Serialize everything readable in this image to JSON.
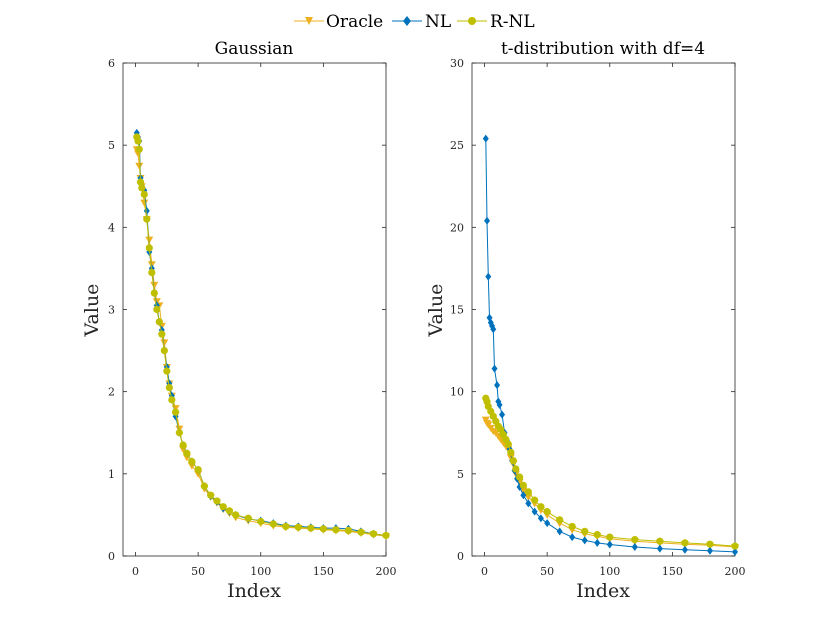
{
  "chart_data": [
    {
      "type": "line",
      "title": "Gaussian",
      "xlabel": "Index",
      "ylabel": "Value",
      "xlim": [
        -10,
        200
      ],
      "ylim": [
        0,
        6
      ],
      "xticks": [
        "0",
        "50",
        "100",
        "150",
        "200"
      ],
      "yticks": [
        "0",
        "1",
        "2",
        "3",
        "4",
        "5",
        "6"
      ],
      "series": [
        {
          "name": "Oracle",
          "x": [
            1,
            2,
            3,
            4,
            5,
            7,
            9,
            11,
            13,
            15,
            17,
            19,
            21,
            23,
            25,
            27,
            29,
            32,
            35,
            38,
            41,
            45,
            50,
            55,
            60,
            65,
            70,
            75,
            80,
            90,
            100,
            110,
            120,
            130,
            140,
            150,
            160,
            170,
            180,
            190,
            200
          ],
          "y": [
            4.95,
            4.9,
            4.75,
            4.6,
            4.5,
            4.3,
            4.1,
            3.85,
            3.55,
            3.3,
            3.1,
            3.05,
            2.8,
            2.6,
            2.3,
            2.1,
            1.95,
            1.8,
            1.55,
            1.3,
            1.2,
            1.1,
            1.0,
            0.82,
            0.72,
            0.65,
            0.57,
            0.52,
            0.47,
            0.43,
            0.4,
            0.37,
            0.35,
            0.34,
            0.33,
            0.32,
            0.31,
            0.3,
            0.28,
            0.26,
            0.24
          ]
        },
        {
          "name": "NL",
          "x": [
            1,
            2,
            3,
            4,
            5,
            7,
            9,
            11,
            13,
            15,
            17,
            19,
            21,
            23,
            25,
            27,
            29,
            32,
            35,
            38,
            41,
            45,
            50,
            55,
            60,
            65,
            70,
            75,
            80,
            90,
            100,
            110,
            120,
            130,
            140,
            150,
            160,
            170,
            180,
            190,
            200
          ],
          "y": [
            5.15,
            5.1,
            5.05,
            4.6,
            4.5,
            4.45,
            4.2,
            3.7,
            3.5,
            3.2,
            3.05,
            2.85,
            2.75,
            2.5,
            2.3,
            2.1,
            1.95,
            1.7,
            1.5,
            1.35,
            1.25,
            1.15,
            1.05,
            0.85,
            0.73,
            0.66,
            0.58,
            0.54,
            0.5,
            0.45,
            0.43,
            0.4,
            0.37,
            0.36,
            0.35,
            0.34,
            0.34,
            0.33,
            0.3,
            0.27,
            0.25
          ]
        },
        {
          "name": "R-NL",
          "x": [
            1,
            2,
            3,
            4,
            5,
            7,
            9,
            11,
            13,
            15,
            17,
            19,
            21,
            23,
            25,
            27,
            29,
            32,
            35,
            38,
            41,
            45,
            50,
            55,
            60,
            65,
            70,
            75,
            80,
            90,
            100,
            110,
            120,
            130,
            140,
            150,
            160,
            170,
            180,
            190,
            200
          ],
          "y": [
            5.1,
            5.05,
            4.95,
            4.55,
            4.48,
            4.4,
            4.1,
            3.75,
            3.45,
            3.2,
            3.0,
            2.85,
            2.7,
            2.5,
            2.25,
            2.05,
            1.9,
            1.75,
            1.5,
            1.35,
            1.25,
            1.15,
            1.05,
            0.85,
            0.74,
            0.67,
            0.6,
            0.55,
            0.5,
            0.46,
            0.42,
            0.39,
            0.36,
            0.35,
            0.34,
            0.33,
            0.32,
            0.31,
            0.29,
            0.27,
            0.25
          ]
        }
      ]
    },
    {
      "type": "line",
      "title": "t-distribution with df=4",
      "xlabel": "Index",
      "ylabel": "Value",
      "xlim": [
        -10,
        200
      ],
      "ylim": [
        0,
        30
      ],
      "xticks": [
        "0",
        "50",
        "100",
        "150",
        "200"
      ],
      "yticks": [
        "0",
        "5",
        "10",
        "15",
        "20",
        "25",
        "30"
      ],
      "series": [
        {
          "name": "Oracle",
          "x": [
            1,
            2,
            3,
            5,
            7,
            9,
            11,
            13,
            15,
            17,
            19,
            21,
            23,
            25,
            28,
            31,
            35,
            40,
            45,
            50,
            60,
            70,
            80,
            90,
            100,
            120,
            140,
            160,
            180,
            200
          ],
          "y": [
            8.3,
            8.1,
            8.0,
            7.8,
            7.6,
            7.5,
            7.3,
            7.1,
            6.9,
            6.7,
            6.5,
            6.0,
            5.6,
            5.0,
            4.5,
            4.0,
            3.6,
            3.2,
            2.8,
            2.5,
            2.0,
            1.6,
            1.35,
            1.2,
            1.05,
            0.9,
            0.8,
            0.72,
            0.65,
            0.55
          ]
        },
        {
          "name": "NL",
          "x": [
            1,
            2,
            3,
            4,
            5,
            6,
            7,
            8,
            10,
            11,
            12,
            14,
            16,
            18,
            20,
            22,
            24,
            26,
            28,
            31,
            35,
            40,
            45,
            50,
            60,
            70,
            80,
            90,
            100,
            120,
            140,
            160,
            180,
            200
          ],
          "y": [
            25.4,
            20.4,
            17.0,
            14.5,
            14.2,
            14.0,
            13.8,
            11.4,
            10.4,
            9.4,
            9.2,
            8.6,
            7.5,
            7.0,
            6.5,
            5.8,
            5.2,
            4.7,
            4.2,
            3.7,
            3.2,
            2.7,
            2.3,
            2.0,
            1.5,
            1.15,
            0.95,
            0.8,
            0.7,
            0.55,
            0.45,
            0.38,
            0.32,
            0.25
          ]
        },
        {
          "name": "R-NL",
          "x": [
            1,
            2,
            3,
            5,
            7,
            9,
            11,
            13,
            15,
            17,
            19,
            21,
            23,
            25,
            28,
            31,
            35,
            40,
            45,
            50,
            60,
            70,
            80,
            90,
            100,
            120,
            140,
            160,
            180,
            200
          ],
          "y": [
            9.6,
            9.4,
            9.1,
            8.8,
            8.5,
            8.2,
            7.9,
            7.7,
            7.4,
            7.1,
            6.8,
            6.3,
            5.8,
            5.3,
            4.8,
            4.3,
            3.9,
            3.4,
            3.0,
            2.7,
            2.2,
            1.8,
            1.5,
            1.3,
            1.15,
            1.0,
            0.9,
            0.8,
            0.72,
            0.6
          ]
        }
      ]
    }
  ],
  "legend": {
    "position": "top-center",
    "entries": [
      {
        "label": "Oracle",
        "color": "#EDB120",
        "marker": "triangle-down"
      },
      {
        "label": "NL",
        "color": "#0072BD",
        "marker": "diamond"
      },
      {
        "label": "R-NL",
        "color": "#BFBF00",
        "marker": "circle"
      }
    ]
  }
}
